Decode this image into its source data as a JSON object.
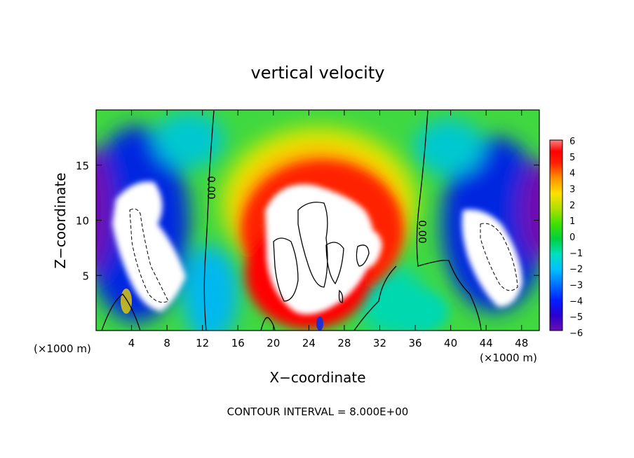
{
  "chart_data": {
    "type": "heatmap",
    "title": "vertical velocity",
    "xlabel": "X−coordinate",
    "ylabel": "Z−coordinate",
    "x_unit_label": "(×1000 m)",
    "xlim": [
      0,
      50
    ],
    "ylim": [
      0,
      20
    ],
    "x_ticks": [
      4,
      8,
      12,
      16,
      20,
      24,
      28,
      32,
      36,
      40,
      44,
      48
    ],
    "y_ticks": [
      5,
      10,
      15
    ],
    "colorbar": {
      "ticks": [
        "6",
        "5",
        "4",
        "3",
        "2",
        "1",
        "0",
        "−1",
        "−2",
        "−3",
        "−4",
        "−5",
        "−6"
      ],
      "range": [
        -6,
        6
      ],
      "colors": [
        "#6a0fb0",
        "#2a00d0",
        "#0020ff",
        "#0070ff",
        "#00c0ff",
        "#00e0c0",
        "#00d040",
        "#40e000",
        "#b0e000",
        "#ffe000",
        "#ff9000",
        "#ff3000",
        "#ff0000",
        "#ff7070"
      ]
    },
    "contour_labels": [
      "0.00",
      "0.00"
    ],
    "features": [
      {
        "name": "left-downdraft",
        "sign": "negative",
        "x_center": 5,
        "z_center": 8
      },
      {
        "name": "central-updraft",
        "sign": "positive",
        "x_center": 26,
        "z_center": 8
      },
      {
        "name": "right-downdraft",
        "sign": "negative",
        "x_center": 45,
        "z_center": 7
      }
    ],
    "footnote": "CONTOUR INTERVAL = 8.000E+00"
  }
}
